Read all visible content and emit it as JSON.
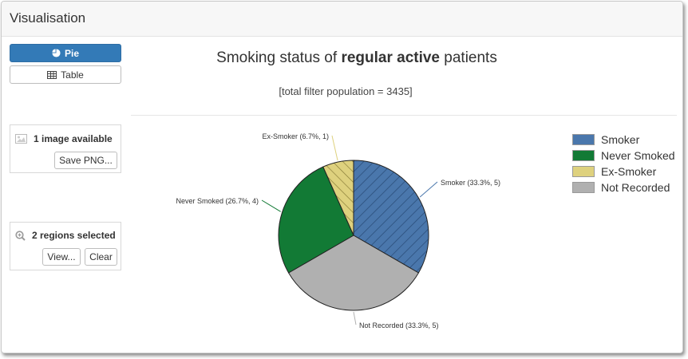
{
  "panel": {
    "title": "Visualisation"
  },
  "sidebar": {
    "pie_button": "Pie",
    "table_button": "Table",
    "images": {
      "label": "1 image available",
      "save_button": "Save PNG..."
    },
    "regions": {
      "label": "2 regions selected",
      "view_button": "View...",
      "clear_button": "Clear"
    }
  },
  "chart_header": {
    "title_prefix": "Smoking status of ",
    "title_bold": "regular active",
    "title_suffix": " patients",
    "subtitle": "[total filter population = 3435]"
  },
  "chart_data": {
    "type": "pie",
    "title": "Smoking status of regular active patients",
    "categories": [
      "Smoker",
      "Never Smoked",
      "Ex-Smoker",
      "Not Recorded"
    ],
    "values": [
      5,
      4,
      1,
      5
    ],
    "percentages": [
      33.3,
      26.7,
      6.7,
      33.3
    ],
    "slice_labels": [
      "Smoker (33.3%, 5)",
      "Never Smoked (26.7%, 4)",
      "Ex-Smoker (6.7%, 1)",
      "Not Recorded (33.3%, 5)"
    ],
    "colors": [
      "#4a77ac",
      "#127a35",
      "#ded17e",
      "#b0b0b0"
    ],
    "patterns": [
      "hatch",
      "none",
      "hatch",
      "none"
    ],
    "legend": {
      "position": "right",
      "entries": [
        "Smoker",
        "Never Smoked",
        "Ex-Smoker",
        "Not Recorded"
      ]
    }
  }
}
